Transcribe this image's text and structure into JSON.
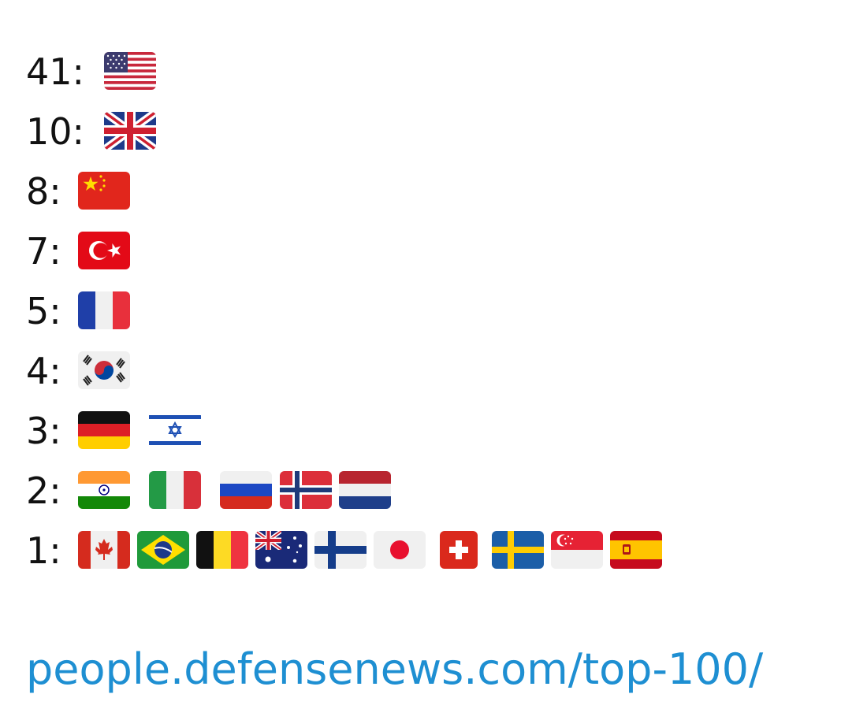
{
  "rows": [
    "41:",
    "10:",
    "8:",
    "7:",
    "5:",
    "4:",
    "3:",
    "2:",
    "1:"
  ],
  "link": "people.defensenews.com/top-100/"
}
